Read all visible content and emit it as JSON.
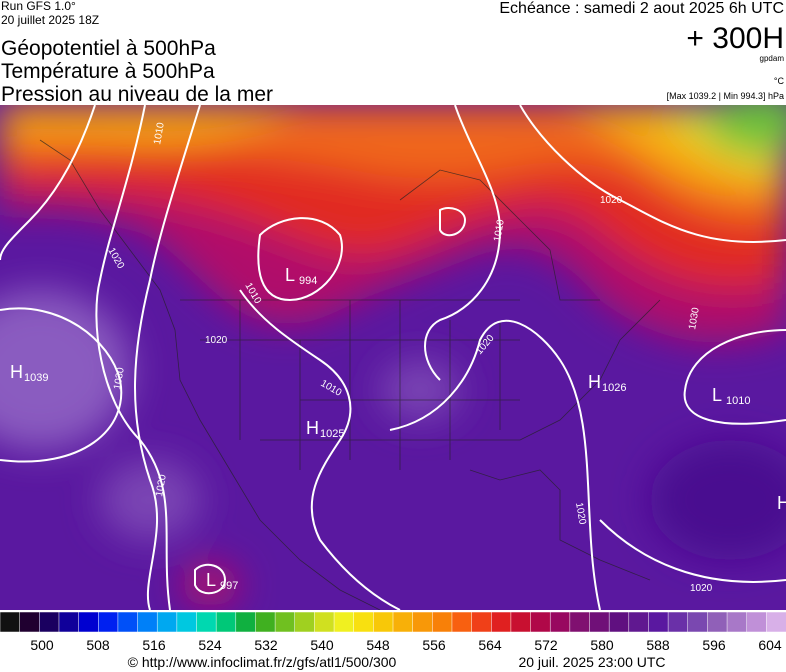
{
  "header": {
    "run": "Run GFS 1.0°",
    "date": "20 juillet 2025 18Z",
    "titles": [
      "Géopotentiel à 500hPa",
      "Température à 500hPa",
      "Pression au niveau de la mer"
    ],
    "echeance": "Echéance : samedi 2 aout 2025 6h UTC",
    "lead": "+ 300H",
    "unit_geo": "gpdam",
    "unit_temp": "°C",
    "range": "[Max 1039.2 | Min 994.3] hPa"
  },
  "map": {
    "pressure_centers": [
      {
        "type": "H",
        "value": "1039"
      },
      {
        "type": "L",
        "value": "994"
      },
      {
        "type": "H",
        "value": "1025"
      },
      {
        "type": "L",
        "value": "997"
      },
      {
        "type": "H",
        "value": "1026"
      },
      {
        "type": "L",
        "value": "1010"
      },
      {
        "type": "H"
      }
    ],
    "isobar_labels": [
      "1010",
      "1020",
      "1010",
      "1020",
      "1030",
      "1010",
      "1020",
      "1020",
      "1010",
      "1020",
      "1020",
      "1020",
      "1030"
    ]
  },
  "colorbar": {
    "labels": [
      "500",
      "508",
      "516",
      "524",
      "532",
      "540",
      "548",
      "556",
      "564",
      "572",
      "580",
      "588",
      "596",
      "604"
    ]
  },
  "footer": {
    "url": "© http://www.infoclimat.fr/z/gfs/atl1/500/300",
    "timestamp": "20 juil. 2025 23:00 UTC"
  }
}
